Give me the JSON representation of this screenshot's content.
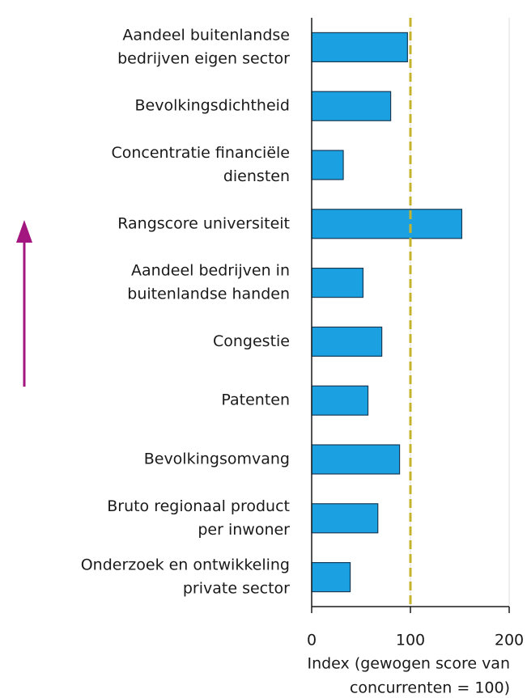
{
  "chart_data": {
    "type": "barh",
    "categories": [
      [
        "Aandeel buitenlandse",
        "bedrijven eigen sector"
      ],
      [
        "Bevolkingsdichtheid"
      ],
      [
        "Concentratie financiële",
        "diensten"
      ],
      [
        "Rangscore universiteit"
      ],
      [
        "Aandeel bedrijven in",
        "buitenlandse handen"
      ],
      [
        "Congestie"
      ],
      [
        "Patenten"
      ],
      [
        "Bevolkingsomvang"
      ],
      [
        "Bruto regionaal product",
        "per inwoner"
      ],
      [
        "Onderzoek en ontwikkeling",
        "private sector"
      ]
    ],
    "values": [
      97,
      80,
      32,
      152,
      52,
      71,
      57,
      89,
      67,
      39
    ],
    "color": "#1ba1e2",
    "xlim": [
      0,
      200
    ],
    "xticks": [
      0,
      100,
      200
    ],
    "xlabel": [
      "Index (gewogen score van",
      "concurrenten = 100)"
    ],
    "reference_line": 100,
    "reference_color": "#c4b42c"
  }
}
